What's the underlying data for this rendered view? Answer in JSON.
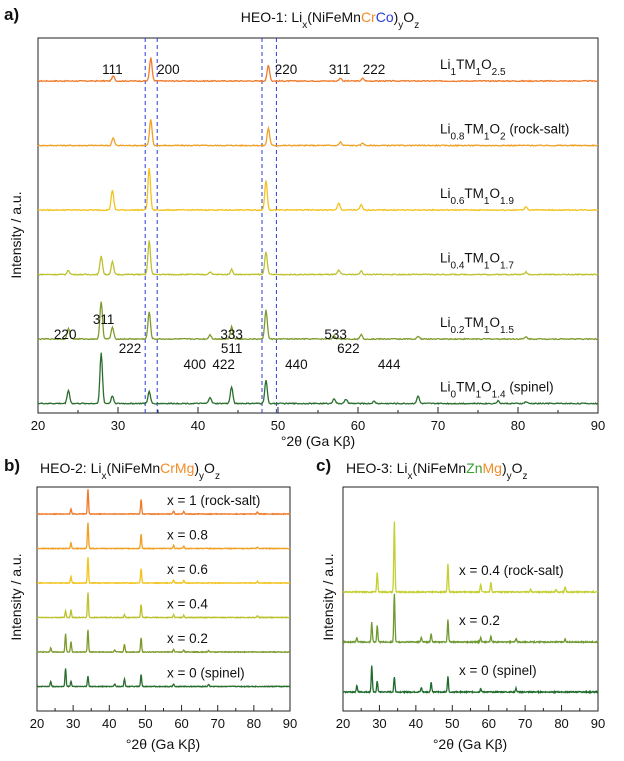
{
  "panels": {
    "a": {
      "letter": "a)",
      "title_parts": [
        {
          "text": "HEO-1: Li",
          "color": "#111111"
        },
        {
          "text": "x",
          "color": "#111111",
          "sub": true
        },
        {
          "text": "(NiFeMn",
          "color": "#111111"
        },
        {
          "text": "Cr",
          "color": "#f28c28"
        },
        {
          "text": "Co",
          "color": "#2b3bd6"
        },
        {
          "text": ")",
          "color": "#111111"
        },
        {
          "text": "y",
          "color": "#111111",
          "sub": true
        },
        {
          "text": "O",
          "color": "#111111"
        },
        {
          "text": "z",
          "color": "#111111",
          "sub": true
        }
      ],
      "xlabel": "°2θ (Ga Kβ)",
      "ylabel": "Intensity / a.u."
    },
    "b": {
      "letter": "b)",
      "title_parts": [
        {
          "text": "HEO-2: Li",
          "color": "#111111"
        },
        {
          "text": "x",
          "color": "#111111",
          "sub": true
        },
        {
          "text": "(NiFeMn",
          "color": "#111111"
        },
        {
          "text": "Cr",
          "color": "#f28c28"
        },
        {
          "text": "Mg",
          "color": "#f28c28"
        },
        {
          "text": ")",
          "color": "#111111"
        },
        {
          "text": "y",
          "color": "#111111",
          "sub": true
        },
        {
          "text": "O",
          "color": "#111111"
        },
        {
          "text": "z",
          "color": "#111111",
          "sub": true
        }
      ],
      "xlabel": "°2θ (Ga Kβ)",
      "ylabel": "Intensity / a.u."
    },
    "c": {
      "letter": "c)",
      "title_parts": [
        {
          "text": "HEO-3: Li",
          "color": "#111111"
        },
        {
          "text": "x",
          "color": "#111111",
          "sub": true
        },
        {
          "text": "(NiFeMn",
          "color": "#111111"
        },
        {
          "text": "Zn",
          "color": "#3aa030"
        },
        {
          "text": "Mg",
          "color": "#f28c28"
        },
        {
          "text": ")",
          "color": "#111111"
        },
        {
          "text": "y",
          "color": "#111111",
          "sub": true
        },
        {
          "text": "O",
          "color": "#111111"
        },
        {
          "text": "z",
          "color": "#111111",
          "sub": true
        }
      ],
      "xlabel": "°2θ (Ga Kβ)",
      "ylabel": "Intensity / a.u."
    }
  },
  "chart_data": [
    {
      "panel": "a",
      "type": "line",
      "x_range": [
        20,
        90
      ],
      "x_ticks": [
        "20",
        "30",
        "40",
        "50",
        "60",
        "70",
        "80",
        "90"
      ],
      "grid": false,
      "reference_lines": {
        "color": "#2b3bd6",
        "style": "dashed",
        "x": [
          33.4,
          34.9,
          48.0,
          49.8
        ]
      },
      "peak_labels_top": [
        {
          "text": "111",
          "x": 29.3
        },
        {
          "text": "200",
          "x": 36.3
        },
        {
          "text": "220",
          "x": 51.0
        },
        {
          "text": "311",
          "x": 57.7
        },
        {
          "text": "222",
          "x": 62.0
        }
      ],
      "peak_labels_bottom": [
        {
          "text": "311",
          "x": 28.2,
          "row": 1
        },
        {
          "text": "220",
          "x": 23.4,
          "row": 2
        },
        {
          "text": "333",
          "x": 44.2,
          "row": 2
        },
        {
          "text": "533",
          "x": 57.2,
          "row": 2
        },
        {
          "text": "222",
          "x": 31.5,
          "row": 3
        },
        {
          "text": "511",
          "x": 44.2,
          "row": 3
        },
        {
          "text": "622",
          "x": 58.8,
          "row": 3
        },
        {
          "text": "400",
          "x": 39.6,
          "row": 4
        },
        {
          "text": "422",
          "x": 43.2,
          "row": 4
        },
        {
          "text": "440",
          "x": 52.3,
          "row": 4
        },
        {
          "text": "444",
          "x": 63.9,
          "row": 4
        }
      ],
      "series": [
        {
          "label_parts": [
            {
              "t": "Li"
            },
            {
              "t": "1",
              "sub": true
            },
            {
              "t": "TM"
            },
            {
              "t": "1",
              "sub": true
            },
            {
              "t": "O"
            },
            {
              "t": "2.5",
              "sub": true
            }
          ],
          "color": "#f07a2a",
          "peaks": [
            [
              29.4,
              0.12
            ],
            [
              34.1,
              0.55
            ],
            [
              48.8,
              0.38
            ],
            [
              57.8,
              0.07
            ],
            [
              60.6,
              0.06
            ]
          ]
        },
        {
          "label_parts": [
            {
              "t": "Li"
            },
            {
              "t": "0.8",
              "sub": true
            },
            {
              "t": "TM"
            },
            {
              "t": "1",
              "sub": true
            },
            {
              "t": "O"
            },
            {
              "t": "2",
              "sub": true
            },
            {
              "t": " (rock-salt)"
            }
          ],
          "color": "#f0a024",
          "peaks": [
            [
              29.4,
              0.18
            ],
            [
              34.1,
              0.62
            ],
            [
              48.8,
              0.42
            ],
            [
              57.8,
              0.08
            ],
            [
              60.6,
              0.06
            ]
          ]
        },
        {
          "label_parts": [
            {
              "t": "Li"
            },
            {
              "t": "0.6",
              "sub": true
            },
            {
              "t": "TM"
            },
            {
              "t": "1",
              "sub": true
            },
            {
              "t": "O"
            },
            {
              "t": "1.9",
              "sub": true
            }
          ],
          "color": "#f2c31c",
          "peaks": [
            [
              29.3,
              0.48
            ],
            [
              33.9,
              1.0
            ],
            [
              48.5,
              0.7
            ],
            [
              57.6,
              0.16
            ],
            [
              60.4,
              0.12
            ],
            [
              81.0,
              0.08
            ]
          ]
        },
        {
          "label_parts": [
            {
              "t": "Li"
            },
            {
              "t": "0.4",
              "sub": true
            },
            {
              "t": "TM"
            },
            {
              "t": "1",
              "sub": true
            },
            {
              "t": "O"
            },
            {
              "t": "1.7",
              "sub": true
            }
          ],
          "color": "#bcc22e",
          "peaks": [
            [
              23.8,
              0.1
            ],
            [
              27.9,
              0.45
            ],
            [
              29.3,
              0.3
            ],
            [
              33.9,
              0.8
            ],
            [
              41.5,
              0.06
            ],
            [
              44.2,
              0.12
            ],
            [
              48.5,
              0.55
            ],
            [
              57.6,
              0.1
            ],
            [
              60.4,
              0.08
            ],
            [
              81.0,
              0.06
            ]
          ]
        },
        {
          "label_parts": [
            {
              "t": "Li"
            },
            {
              "t": "0.2",
              "sub": true
            },
            {
              "t": "TM"
            },
            {
              "t": "1",
              "sub": true
            },
            {
              "t": "O"
            },
            {
              "t": "1.5",
              "sub": true
            }
          ],
          "color": "#7e9a2c",
          "peaks": [
            [
              23.8,
              0.25
            ],
            [
              27.9,
              0.9
            ],
            [
              29.3,
              0.28
            ],
            [
              33.9,
              0.65
            ],
            [
              41.5,
              0.1
            ],
            [
              44.2,
              0.3
            ],
            [
              48.5,
              0.7
            ],
            [
              57.0,
              0.08
            ],
            [
              60.4,
              0.1
            ],
            [
              67.5,
              0.06
            ],
            [
              81.0,
              0.05
            ]
          ]
        },
        {
          "label_parts": [
            {
              "t": "Li"
            },
            {
              "t": "0",
              "sub": true
            },
            {
              "t": "TM"
            },
            {
              "t": "1",
              "sub": true
            },
            {
              "t": "O"
            },
            {
              "t": "1.4",
              "sub": true
            },
            {
              "t": " (spinel)"
            }
          ],
          "color": "#2a6e2e",
          "peaks": [
            [
              23.8,
              0.32
            ],
            [
              27.9,
              1.2
            ],
            [
              29.3,
              0.18
            ],
            [
              33.9,
              0.28
            ],
            [
              41.5,
              0.15
            ],
            [
              44.2,
              0.4
            ],
            [
              48.5,
              0.55
            ],
            [
              57.0,
              0.12
            ],
            [
              58.5,
              0.1
            ],
            [
              62.0,
              0.05
            ],
            [
              67.5,
              0.18
            ],
            [
              77.5,
              0.06
            ],
            [
              81.0,
              0.04
            ]
          ]
        }
      ]
    },
    {
      "panel": "b",
      "type": "line",
      "x_range": [
        20,
        90
      ],
      "x_ticks": [
        "20",
        "30",
        "40",
        "50",
        "60",
        "70",
        "80",
        "90"
      ],
      "grid": false,
      "series": [
        {
          "label": "x = 1 (rock-salt)",
          "color": "#f07a2a",
          "peaks": [
            [
              29.4,
              0.2
            ],
            [
              34.1,
              0.95
            ],
            [
              48.8,
              0.55
            ],
            [
              57.8,
              0.12
            ],
            [
              60.6,
              0.1
            ],
            [
              81.0,
              0.08
            ]
          ]
        },
        {
          "label": "x = 0.8",
          "color": "#f0a024",
          "peaks": [
            [
              29.4,
              0.22
            ],
            [
              34.1,
              1.0
            ],
            [
              48.8,
              0.55
            ],
            [
              57.8,
              0.12
            ],
            [
              60.6,
              0.1
            ],
            [
              81.0,
              0.06
            ]
          ]
        },
        {
          "label": "x = 0.6",
          "color": "#f2c31c",
          "peaks": [
            [
              29.4,
              0.25
            ],
            [
              34.1,
              1.0
            ],
            [
              48.8,
              0.55
            ],
            [
              57.8,
              0.12
            ],
            [
              60.6,
              0.1
            ],
            [
              81.0,
              0.06
            ]
          ]
        },
        {
          "label": "x = 0.4",
          "color": "#bcc22e",
          "peaks": [
            [
              27.9,
              0.25
            ],
            [
              29.4,
              0.3
            ],
            [
              34.1,
              0.95
            ],
            [
              44.2,
              0.1
            ],
            [
              48.8,
              0.5
            ],
            [
              57.8,
              0.1
            ],
            [
              60.6,
              0.08
            ],
            [
              81.0,
              0.06
            ]
          ]
        },
        {
          "label": "x = 0.2",
          "color": "#7e9a2c",
          "peaks": [
            [
              23.8,
              0.15
            ],
            [
              27.9,
              0.7
            ],
            [
              29.4,
              0.4
            ],
            [
              34.1,
              0.85
            ],
            [
              41.5,
              0.08
            ],
            [
              44.2,
              0.3
            ],
            [
              48.8,
              0.55
            ],
            [
              57.8,
              0.1
            ],
            [
              60.6,
              0.08
            ],
            [
              67.5,
              0.06
            ]
          ]
        },
        {
          "label": "x = 0 (spinel)",
          "color": "#2a6e2e",
          "peaks": [
            [
              23.8,
              0.2
            ],
            [
              27.9,
              0.7
            ],
            [
              29.4,
              0.2
            ],
            [
              34.1,
              0.4
            ],
            [
              41.5,
              0.1
            ],
            [
              44.2,
              0.3
            ],
            [
              48.8,
              0.45
            ],
            [
              57.8,
              0.1
            ],
            [
              67.5,
              0.08
            ]
          ]
        }
      ]
    },
    {
      "panel": "c",
      "type": "line",
      "x_range": [
        20,
        90
      ],
      "x_ticks": [
        "20",
        "30",
        "40",
        "50",
        "60",
        "70",
        "80",
        "90"
      ],
      "grid": false,
      "series": [
        {
          "label": "x = 0.4 (rock-salt)",
          "color": "#c4cf34",
          "peaks": [
            [
              29.4,
              0.45
            ],
            [
              34.1,
              1.6
            ],
            [
              48.8,
              0.65
            ],
            [
              57.8,
              0.18
            ],
            [
              60.6,
              0.22
            ],
            [
              71.5,
              0.06
            ],
            [
              78.5,
              0.05
            ],
            [
              81.0,
              0.12
            ]
          ]
        },
        {
          "label": "x = 0.2",
          "color": "#6f9a32",
          "peaks": [
            [
              23.8,
              0.1
            ],
            [
              27.9,
              0.45
            ],
            [
              29.4,
              0.38
            ],
            [
              34.1,
              1.1
            ],
            [
              41.5,
              0.1
            ],
            [
              44.2,
              0.18
            ],
            [
              48.8,
              0.5
            ],
            [
              57.8,
              0.1
            ],
            [
              60.6,
              0.12
            ],
            [
              67.5,
              0.08
            ],
            [
              81.0,
              0.06
            ]
          ]
        },
        {
          "label": "x = 0 (spinel)",
          "color": "#1e6b2c",
          "peaks": [
            [
              23.8,
              0.15
            ],
            [
              27.9,
              0.6
            ],
            [
              29.4,
              0.25
            ],
            [
              34.1,
              0.35
            ],
            [
              41.5,
              0.1
            ],
            [
              44.2,
              0.22
            ],
            [
              48.8,
              0.35
            ],
            [
              57.8,
              0.08
            ],
            [
              67.5,
              0.08
            ]
          ]
        }
      ]
    }
  ]
}
